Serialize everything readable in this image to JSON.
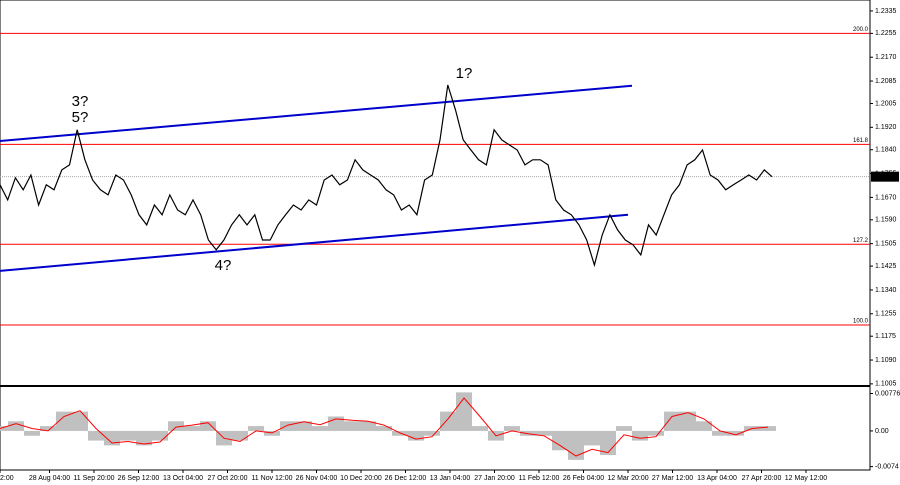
{
  "chart_data": [
    {
      "type": "line",
      "color": "#000000",
      "values": [
        1.1715,
        1.1661,
        1.174,
        1.1697,
        1.175,
        1.1643,
        1.1715,
        1.1697,
        1.1768,
        1.1786,
        1.1911,
        1.1804,
        1.1732,
        1.1697,
        1.1679,
        1.175,
        1.1732,
        1.1679,
        1.1608,
        1.1572,
        1.1643,
        1.1608,
        1.1679,
        1.1625,
        1.1608,
        1.1661,
        1.1608,
        1.1518,
        1.1483,
        1.1518,
        1.1572,
        1.1608,
        1.1572,
        1.1608,
        1.1518,
        1.1518,
        1.1572,
        1.1608,
        1.1643,
        1.1625,
        1.1661,
        1.1643,
        1.1732,
        1.175,
        1.1715,
        1.1732,
        1.1804,
        1.1768,
        1.175,
        1.1732,
        1.1697,
        1.1679,
        1.1625,
        1.1643,
        1.1608,
        1.1732,
        1.175,
        1.1875,
        1.2071,
        1.1982,
        1.1875,
        1.1839,
        1.1804,
        1.1786,
        1.1911,
        1.1875,
        1.1857,
        1.1839,
        1.1786,
        1.1804,
        1.1804,
        1.1786,
        1.1661,
        1.1625,
        1.1608,
        1.1572,
        1.1518,
        1.1429,
        1.1536,
        1.1608,
        1.1554,
        1.1518,
        1.1501,
        1.1465,
        1.1572,
        1.1536,
        1.1608,
        1.1679,
        1.1715,
        1.1786,
        1.1804,
        1.1839,
        1.175,
        1.1732,
        1.1697,
        1.1715,
        1.1732,
        1.175,
        1.1732,
        1.1768,
        1.1744
      ],
      "x_labels": [
        "2:00",
        "28 Aug 04:00",
        "11 Sep 20:00",
        "26 Sep 12:00",
        "13 Oct 04:00",
        "27 Oct 20:00",
        "11 Nov 12:00",
        "26 Nov 04:00",
        "10 Dec 20:00",
        "26 Dec 12:00",
        "13 Jan 04:00",
        "27 Jan 20:00",
        "11 Feb 12:00",
        "26 Feb 04:00",
        "12 Mar 20:00",
        "27 Mar 12:00",
        "13 Apr 04:00",
        "27 Apr 20:00",
        "12 May 12:00"
      ],
      "ylim": [
        1.1001,
        1.2374
      ],
      "yticks": [
        1.2335,
        1.2255,
        {
          "value": 1.217,
          "label": "1.2170"
        },
        1.2085,
        1.2005,
        {
          "value": 1.192,
          "label": "1.1920"
        },
        {
          "value": 1.184,
          "label": "1.1840"
        },
        1.1755,
        {
          "value": 1.167,
          "label": "1.1670"
        },
        {
          "value": 1.159,
          "label": "1.1590"
        },
        1.1505,
        1.1425,
        {
          "value": 1.134,
          "label": "1.1340"
        },
        1.1255,
        1.1175,
        {
          "value": 1.109,
          "label": "1.1090"
        },
        1.1005
      ],
      "levels": [
        {
          "label": "200.0",
          "value": 1.2255,
          "color": "#ff0000"
        },
        {
          "label": "161.8",
          "value": 1.1859,
          "color": "#ff0000"
        },
        {
          "label": "127.2",
          "value": 1.1503,
          "color": "#ff0000"
        },
        {
          "label": "100.0",
          "value": 1.1215,
          "color": "#ff0000"
        }
      ],
      "current_price": 1.1744,
      "trendlines": [
        {
          "start": 1.1871,
          "end": 1.2068,
          "color": "#0000cc"
        },
        {
          "start": 1.1408,
          "end": 1.1608,
          "color": "#0000cc"
        }
      ],
      "annotations": [
        {
          "text": "3?",
          "color": "#e00000"
        },
        {
          "text": "5?",
          "color": "#0000cc"
        },
        {
          "text": "4?",
          "color": "#e00000"
        },
        {
          "text": "1?",
          "color": "#0000cc"
        }
      ]
    },
    {
      "type": "bar",
      "color": "#c0c0c0",
      "values": [
        0.001,
        0.002,
        -0.001,
        0.001,
        0.004,
        0.004,
        -0.002,
        -0.003,
        -0.002,
        -0.003,
        -0.002,
        0.002,
        0.001,
        0.002,
        -0.003,
        -0.002,
        0.001,
        -0.001,
        0.002,
        0.002,
        0.001,
        0.003,
        0.002,
        0.002,
        0.001,
        -0.001,
        -0.002,
        -0.001,
        0.004,
        0.008,
        0.001,
        -0.002,
        0.001,
        -0.001,
        -0.001,
        -0.004,
        -0.006,
        -0.003,
        -0.005,
        0.001,
        -0.002,
        -0.001,
        0.004,
        0.004,
        0.002,
        -0.001,
        -0.001,
        0.001,
        0.001
      ],
      "signal": {
        "color": "#ff0000",
        "values": [
          0.0005,
          0.0015,
          0.0005,
          0,
          0.003,
          0.0042,
          0.0005,
          -0.0025,
          -0.0022,
          -0.0027,
          -0.0023,
          0.0008,
          0.0012,
          0.0017,
          -0.0015,
          -0.0022,
          0,
          -0.0004,
          0.0012,
          0.0019,
          0.0013,
          0.0025,
          0.0022,
          0.002,
          0.0012,
          -0.0004,
          -0.0017,
          -0.0012,
          0.0025,
          0.0068,
          0.003,
          -0.001,
          0,
          -0.0006,
          -0.001,
          -0.003,
          -0.0052,
          -0.0038,
          -0.0045,
          -0.0008,
          -0.0015,
          -0.0012,
          0.003,
          0.0038,
          0.0025,
          0,
          -0.0008,
          0.0005,
          0.0008
        ]
      },
      "ylim": [
        -0.0081,
        0.0089
      ],
      "yticks": [
        0.00776,
        {
          "value": 0,
          "label": "0.00"
        },
        -0.0074
      ]
    }
  ]
}
